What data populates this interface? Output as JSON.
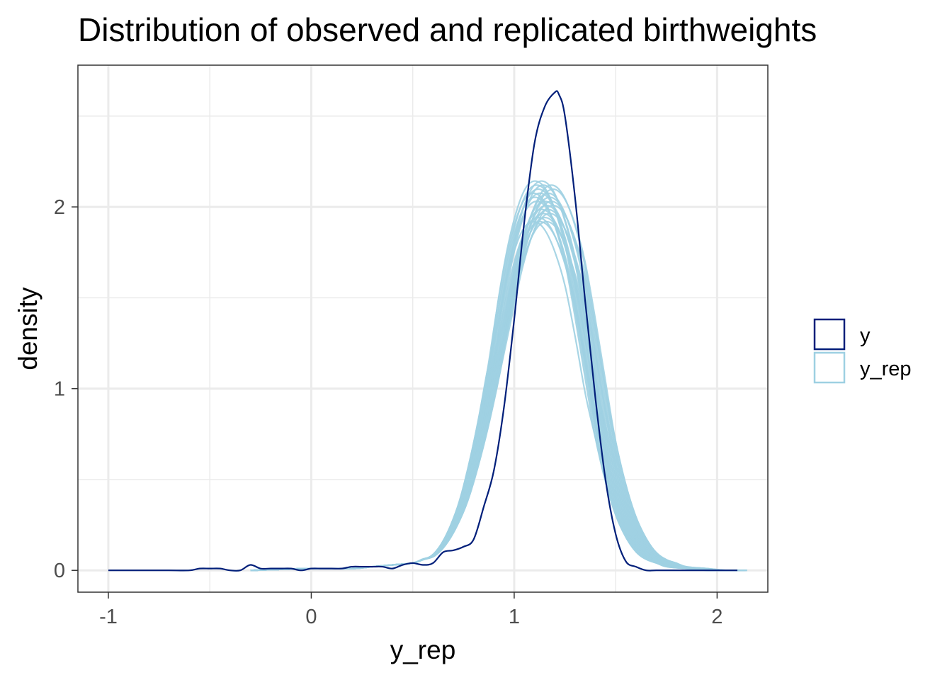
{
  "chart_data": {
    "type": "line",
    "title": "Distribution of observed and replicated birthweights",
    "xlabel": "y_rep",
    "ylabel": "density",
    "xlim": [
      -1.15,
      2.25
    ],
    "ylim": [
      -0.12,
      2.78
    ],
    "x_ticks": [
      -1,
      0,
      1,
      2
    ],
    "x_tick_labels": [
      "-1",
      "0",
      "1",
      "2"
    ],
    "y_ticks": [
      0,
      1,
      2
    ],
    "y_tick_labels": [
      "0",
      "1",
      "2"
    ],
    "grid": true,
    "legend": "right",
    "colors": {
      "y": "#011f7a",
      "y_rep": "#9ed0e2"
    },
    "series": [
      {
        "name": "y",
        "x": [
          -1.0,
          -0.9,
          -0.8,
          -0.7,
          -0.6,
          -0.55,
          -0.5,
          -0.45,
          -0.4,
          -0.35,
          -0.3,
          -0.25,
          -0.2,
          -0.15,
          -0.1,
          -0.05,
          0.0,
          0.05,
          0.1,
          0.15,
          0.2,
          0.25,
          0.3,
          0.35,
          0.4,
          0.45,
          0.5,
          0.55,
          0.6,
          0.65,
          0.7,
          0.75,
          0.8,
          0.85,
          0.9,
          0.95,
          1.0,
          1.05,
          1.1,
          1.15,
          1.2,
          1.22,
          1.25,
          1.3,
          1.35,
          1.4,
          1.45,
          1.5,
          1.55,
          1.6,
          1.65,
          1.7,
          1.8,
          1.9,
          2.0,
          2.1
        ],
        "y": [
          0.0,
          0.0,
          0.0,
          0.0,
          0.0,
          0.01,
          0.01,
          0.01,
          0.0,
          0.0,
          0.03,
          0.01,
          0.01,
          0.01,
          0.01,
          0.0,
          0.01,
          0.01,
          0.01,
          0.01,
          0.02,
          0.02,
          0.02,
          0.02,
          0.01,
          0.03,
          0.04,
          0.03,
          0.04,
          0.1,
          0.11,
          0.13,
          0.17,
          0.35,
          0.55,
          0.9,
          1.38,
          1.92,
          2.35,
          2.55,
          2.63,
          2.62,
          2.5,
          2.05,
          1.48,
          0.95,
          0.5,
          0.2,
          0.05,
          0.02,
          0.0,
          0.0,
          0.0,
          0.0,
          0.0,
          0.0
        ]
      },
      {
        "name": "y_rep",
        "x": [
          -0.3,
          0.0,
          0.2,
          0.3,
          0.4,
          0.5,
          0.55,
          0.6,
          0.65,
          0.7,
          0.75,
          0.8,
          0.85,
          0.9,
          0.95,
          1.0,
          1.05,
          1.1,
          1.15,
          1.2,
          1.25,
          1.3,
          1.35,
          1.4,
          1.45,
          1.5,
          1.55,
          1.6,
          1.65,
          1.7,
          1.75,
          1.8,
          1.9,
          2.0,
          2.1
        ],
        "y": [
          0.0,
          0.01,
          0.01,
          0.02,
          0.03,
          0.04,
          0.06,
          0.08,
          0.14,
          0.24,
          0.38,
          0.58,
          0.82,
          1.1,
          1.4,
          1.68,
          1.88,
          2.0,
          2.03,
          1.98,
          1.85,
          1.65,
          1.35,
          1.02,
          0.72,
          0.48,
          0.3,
          0.18,
          0.1,
          0.06,
          0.04,
          0.02,
          0.01,
          0.0,
          0.0
        ]
      }
    ]
  }
}
